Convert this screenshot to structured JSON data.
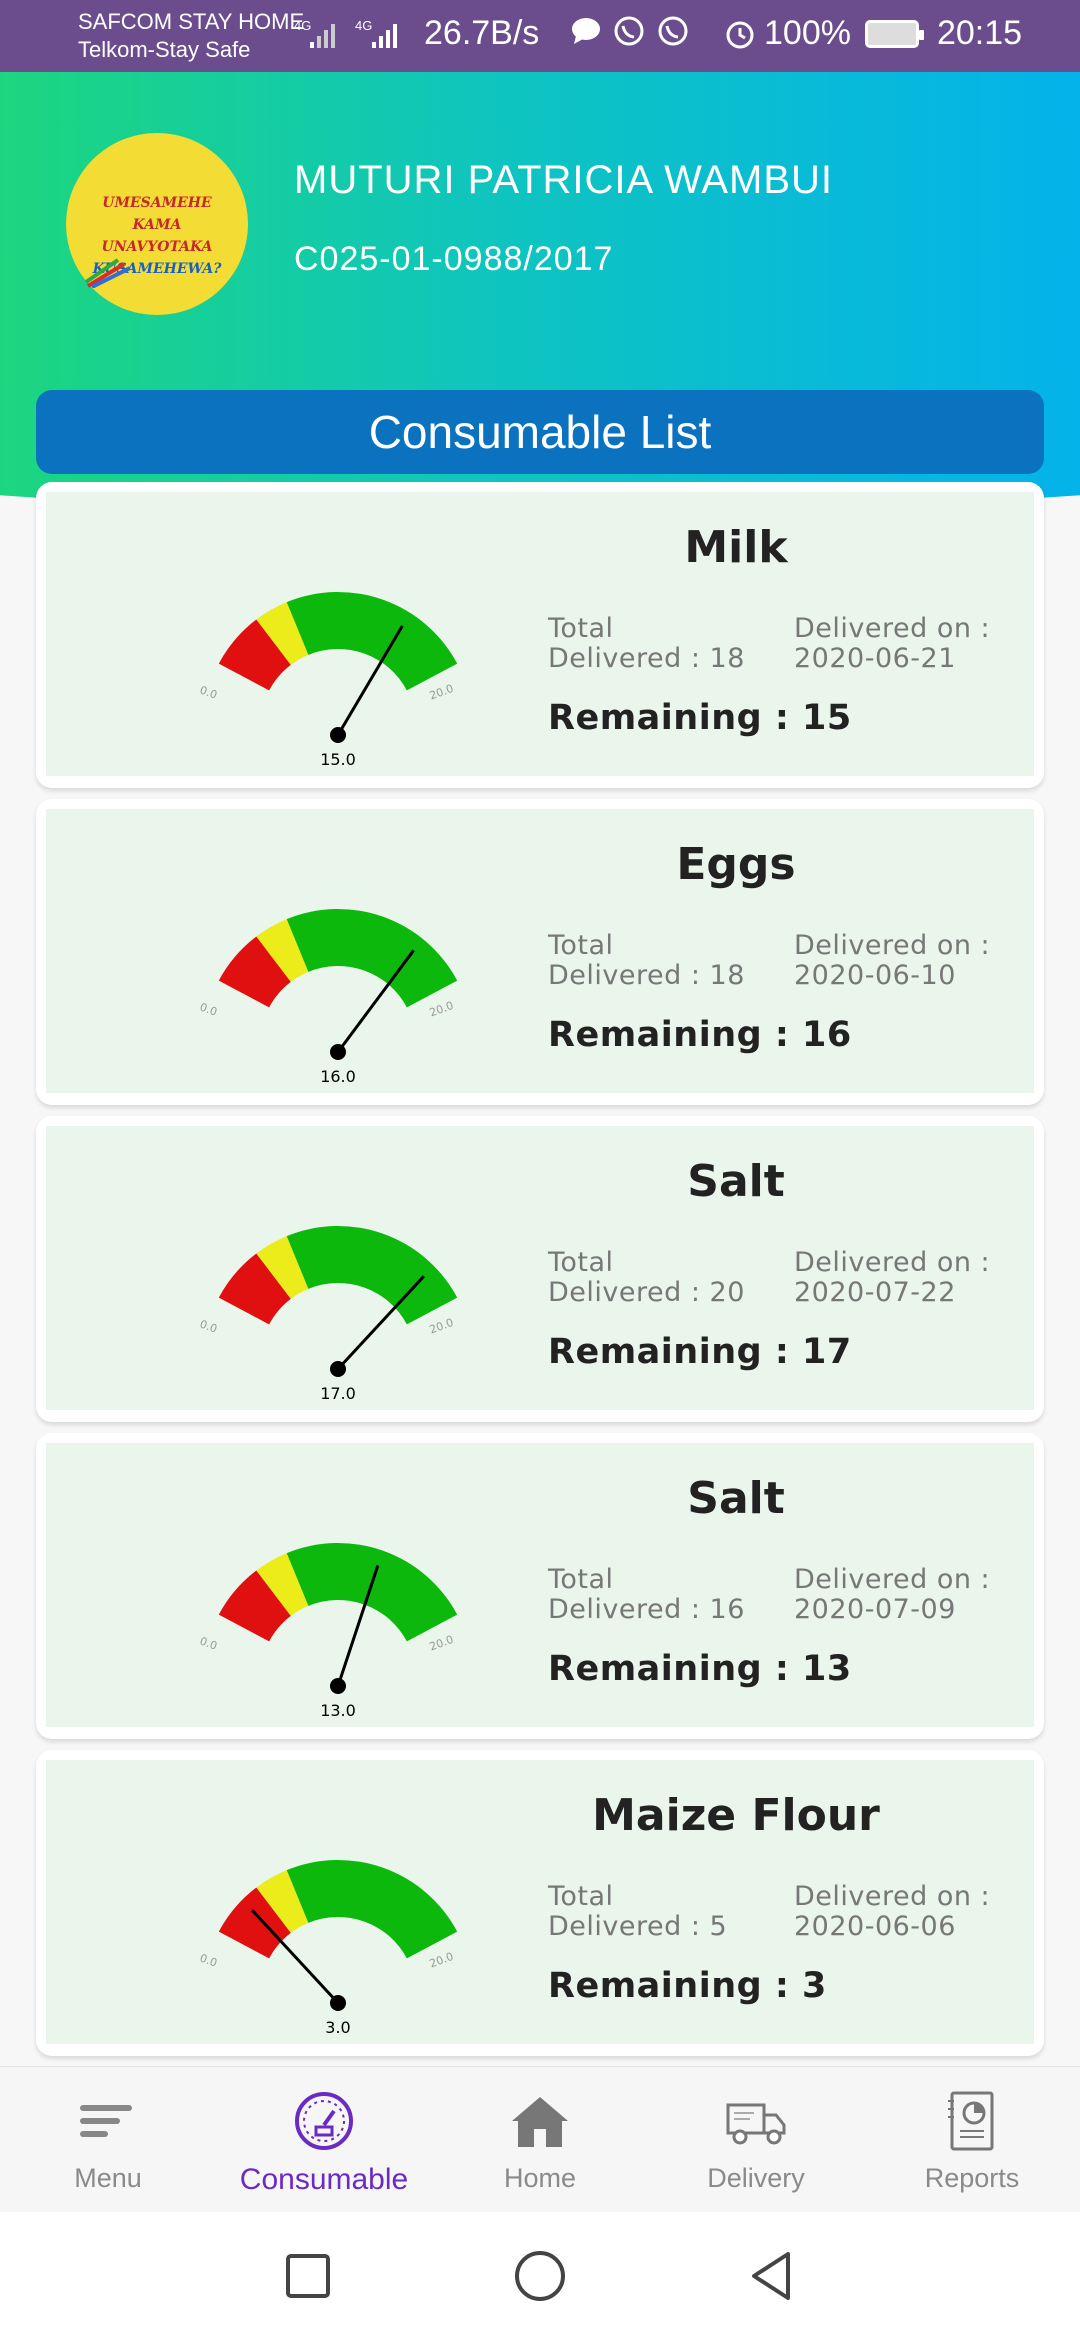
{
  "status_bar": {
    "carrier_1": "SAFCOM STAY HOME",
    "carrier_2": "Telkom-Stay Safe",
    "net_type_1": "4G",
    "net_type_2": "4G",
    "net_speed": "26.7B/s",
    "battery": "100%",
    "time": "20:15",
    "icons": [
      "message-icon",
      "whatsapp-icon",
      "whatsapp-icon",
      "alarm-icon",
      "battery-icon"
    ]
  },
  "profile": {
    "logo_text_line1": "UMESAMEHE KAMA",
    "logo_text_line2": "UNAVYOTAKA",
    "logo_text_line3": "KUSAMEHEWA?",
    "name": "MUTURI PATRICIA WAMBUI",
    "id": "C025-01-0988/2017"
  },
  "list_title": "Consumable List",
  "gauge": {
    "min_label": "0.0",
    "max_label": "20.0",
    "min": 0,
    "max": 20,
    "colors": {
      "red": "#e01010",
      "yellow": "#ecec1a",
      "green": "#0cb80c"
    }
  },
  "items": [
    {
      "name": "Milk",
      "total_label": "Total",
      "total": "Delivered : 18",
      "date_label": "Delivered on :",
      "date": "2020-06-21",
      "remaining": "Remaining : 15",
      "value": 15,
      "value_label": "15.0"
    },
    {
      "name": "Eggs",
      "total_label": "Total",
      "total": "Delivered : 18",
      "date_label": "Delivered on :",
      "date": "2020-06-10",
      "remaining": "Remaining : 16",
      "value": 16,
      "value_label": "16.0"
    },
    {
      "name": "Salt",
      "total_label": "Total",
      "total": "Delivered : 20",
      "date_label": "Delivered on :",
      "date": "2020-07-22",
      "remaining": "Remaining : 17",
      "value": 17,
      "value_label": "17.0"
    },
    {
      "name": "Salt",
      "total_label": "Total",
      "total": "Delivered : 16",
      "date_label": "Delivered on :",
      "date": "2020-07-09",
      "remaining": "Remaining : 13",
      "value": 13,
      "value_label": "13.0"
    },
    {
      "name": "Maize Flour",
      "total_label": "Total",
      "total": "Delivered : 5",
      "date_label": "Delivered on :",
      "date": "2020-06-06",
      "remaining": "Remaining : 3",
      "value": 3,
      "value_label": "3.0"
    }
  ],
  "nav": {
    "active": "Consumable",
    "items": [
      {
        "label": "Menu",
        "icon": "menu-icon"
      },
      {
        "label": "Consumable",
        "icon": "gauge-icon"
      },
      {
        "label": "Home",
        "icon": "home-icon"
      },
      {
        "label": "Delivery",
        "icon": "truck-icon"
      },
      {
        "label": "Reports",
        "icon": "report-icon"
      }
    ]
  },
  "system_nav": [
    "recents-button",
    "home-button",
    "back-button"
  ]
}
